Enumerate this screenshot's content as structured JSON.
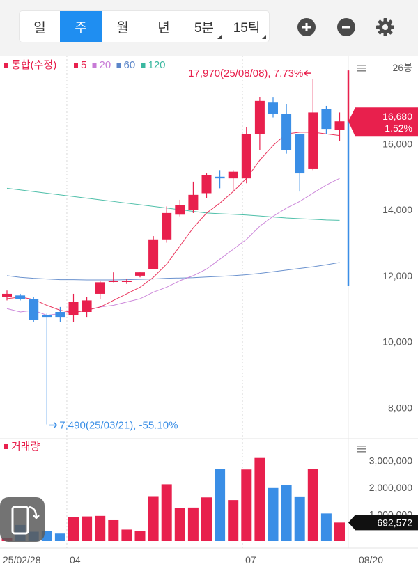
{
  "tabs": [
    {
      "label": "일",
      "active": false,
      "dropdown": false
    },
    {
      "label": "주",
      "active": true,
      "dropdown": false
    },
    {
      "label": "월",
      "active": false,
      "dropdown": false
    },
    {
      "label": "년",
      "active": false,
      "dropdown": false
    },
    {
      "label": "5분",
      "active": false,
      "dropdown": true
    },
    {
      "label": "15틱",
      "active": false,
      "dropdown": true
    }
  ],
  "toolbar": {
    "zoom_in_icon": "plus-circle-icon",
    "zoom_out_icon": "minus-circle-icon",
    "settings_icon": "gear-icon"
  },
  "price_panel": {
    "legend": [
      {
        "label": "통합(수정)",
        "color": "#e8204d"
      },
      {
        "label": "5",
        "color": "#e8204d"
      },
      {
        "label": "20",
        "color": "#c77ad6"
      },
      {
        "label": "60",
        "color": "#5b86c9"
      },
      {
        "label": "120",
        "color": "#3bb8a0"
      }
    ],
    "period_count": "26봉",
    "high_annotation": "17,970(25/08/08), 7.73%",
    "low_annotation": "7,490(25/03/21), -55.10%",
    "current_price": "16,680",
    "current_change": "1.52%"
  },
  "volume_panel": {
    "legend_label": "거래량",
    "current_volume": "692,572"
  },
  "x_labels": [
    "25/02/28",
    "04",
    "07",
    "08/20"
  ],
  "colors": {
    "up": "#e8204d",
    "down": "#3a8ee6",
    "ma5": "#e8204d",
    "ma20": "#c77ad6",
    "ma60": "#5b86c9",
    "ma120": "#3bb8a0"
  },
  "chart_data": {
    "type": "candlestick",
    "title": "",
    "price_axis": {
      "ticks": [
        8000,
        10000,
        12000,
        14000,
        16000
      ],
      "tick_labels": [
        "8,000",
        "10,000",
        "12,000",
        "14,000",
        "16,000"
      ],
      "ylim": [
        7100,
        18500
      ]
    },
    "volume_axis": {
      "ticks": [
        1000000,
        2000000,
        3000000
      ],
      "tick_labels": [
        "1,000,000",
        "2,000,000",
        "3,000,000"
      ],
      "ylim": [
        0,
        3300000
      ]
    },
    "candles": [
      {
        "o": 11350,
        "h": 11550,
        "l": 11250,
        "c": 11450
      },
      {
        "o": 11400,
        "h": 11450,
        "l": 11250,
        "c": 11300
      },
      {
        "o": 11300,
        "h": 11350,
        "l": 10600,
        "c": 10650
      },
      {
        "o": 10800,
        "h": 10850,
        "l": 7490,
        "c": 10750
      },
      {
        "o": 10900,
        "h": 11050,
        "l": 10600,
        "c": 10750
      },
      {
        "o": 10800,
        "h": 11450,
        "l": 10600,
        "c": 11200
      },
      {
        "o": 10900,
        "h": 11350,
        "l": 10750,
        "c": 11250
      },
      {
        "o": 11450,
        "h": 11850,
        "l": 11300,
        "c": 11800
      },
      {
        "o": 11850,
        "h": 12100,
        "l": 11800,
        "c": 11850
      },
      {
        "o": 11850,
        "h": 11900,
        "l": 11750,
        "c": 11850
      },
      {
        "o": 12000,
        "h": 12100,
        "l": 11950,
        "c": 12100
      },
      {
        "o": 12200,
        "h": 13200,
        "l": 12200,
        "c": 13100
      },
      {
        "o": 13100,
        "h": 14100,
        "l": 13000,
        "c": 13900
      },
      {
        "o": 13850,
        "h": 14300,
        "l": 13800,
        "c": 14150
      },
      {
        "o": 14000,
        "h": 14850,
        "l": 13900,
        "c": 14450
      },
      {
        "o": 14500,
        "h": 15100,
        "l": 14350,
        "c": 15050
      },
      {
        "o": 15000,
        "h": 15200,
        "l": 14650,
        "c": 14950
      },
      {
        "o": 14950,
        "h": 15200,
        "l": 14550,
        "c": 15150
      },
      {
        "o": 14950,
        "h": 16500,
        "l": 14800,
        "c": 16300
      },
      {
        "o": 16300,
        "h": 17420,
        "l": 15800,
        "c": 17300
      },
      {
        "o": 17250,
        "h": 17400,
        "l": 16800,
        "c": 16900
      },
      {
        "o": 16900,
        "h": 17200,
        "l": 15700,
        "c": 15800
      },
      {
        "o": 16300,
        "h": 16300,
        "l": 14550,
        "c": 15100
      },
      {
        "o": 15250,
        "h": 17970,
        "l": 15200,
        "c": 16950
      },
      {
        "o": 17050,
        "h": 17150,
        "l": 16300,
        "c": 16450
      },
      {
        "o": 16430,
        "h": 16950,
        "l": 16080,
        "c": 16680
      }
    ],
    "volumes": [
      120000,
      600000,
      350000,
      380000,
      280000,
      900000,
      920000,
      940000,
      780000,
      430000,
      380000,
      1650000,
      2120000,
      1230000,
      1250000,
      1630000,
      2680000,
      1530000,
      2670000,
      3100000,
      1980000,
      2100000,
      1640000,
      2680000,
      1030000,
      692572
    ],
    "ma5": [
      11300,
      11350,
      11280,
      11100,
      10950,
      10880,
      10950,
      11050,
      11250,
      11450,
      11650,
      11950,
      12350,
      12900,
      13450,
      13900,
      14200,
      14550,
      14950,
      15500,
      15950,
      16300,
      16350,
      16350,
      16300,
      16250
    ],
    "ma20": [
      11000,
      10900,
      10950,
      10800,
      10850,
      10900,
      10950,
      11050,
      11100,
      11200,
      11300,
      11500,
      11650,
      11850,
      12000,
      12200,
      12500,
      12800,
      13100,
      13500,
      13800,
      14050,
      14250,
      14500,
      14750,
      14950
    ],
    "ma60": [
      12000,
      11950,
      11920,
      11900,
      11880,
      11880,
      11870,
      11870,
      11870,
      11880,
      11890,
      11900,
      11920,
      11930,
      11940,
      11960,
      11980,
      12000,
      12030,
      12070,
      12120,
      12170,
      12220,
      12270,
      12330,
      12400
    ],
    "ma120": [
      14650,
      14600,
      14550,
      14500,
      14450,
      14400,
      14350,
      14300,
      14250,
      14200,
      14150,
      14100,
      14050,
      14000,
      13950,
      13900,
      13880,
      13860,
      13840,
      13810,
      13780,
      13750,
      13730,
      13710,
      13690,
      13680
    ]
  }
}
